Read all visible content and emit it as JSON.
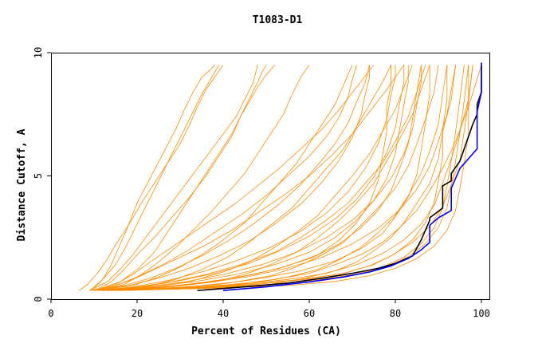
{
  "chart_data": {
    "type": "line",
    "title": "T1083-D1",
    "xlabel": "Percent of Residues (CA)",
    "ylabel": "Distance Cutoff, A",
    "xlim": [
      0,
      100
    ],
    "ylim": [
      0,
      10
    ],
    "xticks": [
      "0",
      "20",
      "40",
      "60",
      "80",
      "100"
    ],
    "yticks": [
      "0",
      "5",
      "10"
    ],
    "grid": false,
    "legend": "none",
    "colors": {
      "background_models": "#ff8c00",
      "highlight_black": "#000000",
      "highlight_blue": "#0000ff"
    },
    "highlight_series": [
      {
        "color": "#000000",
        "x": [
          34,
          45,
          55,
          63,
          70,
          76,
          80,
          84,
          86,
          88,
          88,
          91,
          91,
          93,
          93,
          95,
          96,
          97,
          98,
          99,
          99,
          100,
          100
        ],
        "y": [
          0.35,
          0.5,
          0.65,
          0.85,
          1.05,
          1.25,
          1.45,
          1.75,
          2.4,
          3.2,
          3.3,
          3.7,
          4.6,
          4.8,
          5.1,
          5.6,
          6.1,
          6.6,
          7.1,
          7.5,
          7.9,
          8.4,
          9.5
        ]
      },
      {
        "color": "#0000ff",
        "x": [
          40,
          50,
          60,
          68,
          74,
          79,
          83,
          86,
          88,
          88,
          90,
          93,
          93,
          94,
          95,
          97,
          99,
          99,
          100,
          100
        ],
        "y": [
          0.35,
          0.5,
          0.7,
          0.9,
          1.1,
          1.35,
          1.65,
          2.0,
          2.3,
          3.0,
          3.3,
          3.6,
          4.5,
          4.9,
          5.3,
          5.7,
          6.1,
          7.6,
          8.4,
          9.6
        ]
      }
    ],
    "background_curves": [
      {
        "x": [
          6.5,
          8.5,
          11,
          13,
          15,
          18,
          21,
          24,
          27,
          30,
          32,
          34,
          36,
          38,
          40
        ],
        "y": [
          0.35,
          0.6,
          1.1,
          1.6,
          2.2,
          3,
          3.9,
          4.7,
          5.5,
          6.3,
          7,
          7.8,
          8.5,
          9,
          9.5
        ]
      },
      {
        "x": [
          9.5,
          12,
          14,
          16,
          18,
          20,
          23,
          26,
          29,
          31,
          33,
          35,
          37,
          38,
          38
        ],
        "y": [
          0.35,
          0.8,
          1.4,
          2.2,
          3,
          3.9,
          4.9,
          5.9,
          6.9,
          7.7,
          8.4,
          9,
          9.3,
          9.5,
          9.5
        ]
      },
      {
        "x": [
          10,
          14,
          17,
          20,
          24,
          28,
          32,
          36,
          39,
          42,
          44,
          46,
          48,
          49,
          50
        ],
        "y": [
          0.35,
          0.7,
          1.2,
          1.8,
          2.5,
          3.3,
          4.1,
          5,
          5.8,
          6.6,
          7.4,
          8.1,
          8.8,
          9.2,
          9.5
        ]
      },
      {
        "x": [
          11,
          17,
          21,
          25,
          29,
          33,
          37,
          41,
          45,
          48,
          51,
          54,
          56,
          58,
          60
        ],
        "y": [
          0.35,
          0.6,
          1,
          1.5,
          2.1,
          2.8,
          3.5,
          4.3,
          5.1,
          5.9,
          6.7,
          7.5,
          8.3,
          9,
          9.5
        ]
      },
      {
        "x": [
          10.5,
          19,
          25,
          30,
          35,
          40,
          45,
          49,
          53,
          57,
          60,
          63,
          66,
          68,
          70
        ],
        "y": [
          0.35,
          0.55,
          0.9,
          1.3,
          1.8,
          2.4,
          3.1,
          3.9,
          4.7,
          5.5,
          6.3,
          7.1,
          7.9,
          8.7,
          9.5
        ]
      },
      {
        "x": [
          11,
          22,
          29,
          35,
          41,
          46,
          51,
          56,
          60,
          64,
          68,
          71,
          74,
          77,
          79
        ],
        "y": [
          0.35,
          0.5,
          0.8,
          1.2,
          1.7,
          2.3,
          3,
          3.7,
          4.5,
          5.3,
          6.1,
          7,
          7.9,
          8.8,
          9.5
        ]
      },
      {
        "x": [
          12,
          25,
          33,
          40,
          46,
          52,
          57,
          62,
          66,
          70,
          74,
          77,
          80,
          82,
          84
        ],
        "y": [
          0.35,
          0.5,
          0.75,
          1.1,
          1.5,
          2.1,
          2.7,
          3.4,
          4.2,
          5,
          5.9,
          6.8,
          7.7,
          8.6,
          9.5
        ]
      },
      {
        "x": [
          13,
          28,
          38,
          45,
          51,
          57,
          62,
          67,
          71,
          75,
          78,
          81,
          84,
          86,
          88
        ],
        "y": [
          0.35,
          0.5,
          0.7,
          1,
          1.4,
          1.9,
          2.5,
          3.2,
          3.9,
          4.7,
          5.6,
          6.5,
          7.5,
          8.5,
          9.5
        ]
      },
      {
        "x": [
          14,
          32,
          43,
          51,
          57,
          63,
          68,
          72,
          76,
          80,
          83,
          85,
          87,
          89,
          90
        ],
        "y": [
          0.35,
          0.5,
          0.7,
          0.95,
          1.3,
          1.8,
          2.3,
          3,
          3.7,
          4.5,
          5.4,
          6.3,
          7.3,
          8.4,
          9.5
        ]
      },
      {
        "x": [
          15,
          35,
          47,
          55,
          62,
          67,
          72,
          76,
          80,
          83,
          86,
          88,
          90,
          91,
          92
        ],
        "y": [
          0.35,
          0.5,
          0.65,
          0.9,
          1.2,
          1.6,
          2.1,
          2.7,
          3.4,
          4.2,
          5.1,
          6,
          7.1,
          8.3,
          9.5
        ]
      },
      {
        "x": [
          16,
          38,
          51,
          59,
          66,
          71,
          75,
          79,
          82,
          85,
          88,
          90,
          91,
          93,
          94
        ],
        "y": [
          0.35,
          0.45,
          0.6,
          0.85,
          1.15,
          1.5,
          1.95,
          2.5,
          3.1,
          3.9,
          4.7,
          5.7,
          6.8,
          8.1,
          9.5
        ]
      },
      {
        "x": [
          12,
          30,
          42,
          52,
          60,
          66,
          72,
          77,
          81,
          85,
          88,
          91,
          94,
          97,
          100
        ],
        "y": [
          0.35,
          0.45,
          0.6,
          0.8,
          1.05,
          1.4,
          1.8,
          2.3,
          2.9,
          3.6,
          4.4,
          5.3,
          6.4,
          7.8,
          9.5
        ]
      },
      {
        "x": [
          10,
          15,
          19,
          23,
          28,
          33,
          38,
          43,
          48,
          53,
          58,
          63,
          67,
          71,
          75
        ],
        "y": [
          0.35,
          0.6,
          1,
          1.5,
          2.1,
          2.7,
          3.3,
          3.9,
          4.6,
          5.3,
          6.1,
          6.9,
          7.7,
          8.6,
          9.5
        ]
      },
      {
        "x": [
          10,
          16,
          20,
          24,
          27,
          30,
          33,
          36,
          39,
          42,
          44,
          46,
          48,
          50,
          52
        ],
        "y": [
          0.35,
          0.7,
          1.2,
          1.9,
          2.7,
          3.5,
          4.3,
          5.1,
          5.9,
          6.7,
          7.4,
          8,
          8.6,
          9.1,
          9.5
        ]
      },
      {
        "x": [
          9,
          14,
          19,
          24,
          30,
          36,
          42,
          48,
          54,
          60,
          65,
          70,
          74,
          78,
          82
        ],
        "y": [
          0.35,
          0.5,
          0.8,
          1.2,
          1.7,
          2.2,
          2.8,
          3.5,
          4.2,
          5,
          5.8,
          6.7,
          7.6,
          8.5,
          9.5
        ]
      },
      {
        "x": [
          11,
          20,
          28,
          36,
          44,
          52,
          58,
          64,
          69,
          73,
          77,
          80,
          83,
          85,
          87
        ],
        "y": [
          0.35,
          0.5,
          0.7,
          1,
          1.4,
          1.9,
          2.5,
          3.2,
          3.9,
          4.7,
          5.5,
          6.4,
          7.4,
          8.4,
          9.5
        ]
      },
      {
        "x": [
          12,
          24,
          34,
          44,
          53,
          61,
          67,
          72,
          76,
          79,
          81,
          83,
          84,
          85,
          86
        ],
        "y": [
          0.35,
          0.45,
          0.65,
          0.9,
          1.25,
          1.7,
          2.25,
          2.9,
          3.6,
          4.4,
          5.3,
          6.3,
          7.3,
          8.4,
          9.5
        ]
      },
      {
        "x": [
          13,
          27,
          39,
          49,
          58,
          66,
          72,
          77,
          80,
          83,
          85,
          86,
          87,
          88,
          88
        ],
        "y": [
          0.35,
          0.45,
          0.6,
          0.85,
          1.15,
          1.55,
          2.05,
          2.65,
          3.35,
          4.15,
          5.05,
          6.05,
          7.15,
          8.35,
          9.5
        ]
      },
      {
        "x": [
          11,
          21,
          30,
          38,
          46,
          53,
          60,
          66,
          71,
          75,
          78,
          80,
          81,
          82,
          82
        ],
        "y": [
          0.35,
          0.5,
          0.75,
          1.05,
          1.45,
          1.95,
          2.55,
          3.25,
          4.05,
          4.95,
          5.95,
          6.95,
          7.95,
          8.8,
          9.5
        ]
      },
      {
        "x": [
          10,
          18,
          25,
          32,
          39,
          46,
          52,
          58,
          63,
          67,
          70,
          72,
          73,
          74,
          74
        ],
        "y": [
          0.35,
          0.55,
          0.85,
          1.25,
          1.75,
          2.35,
          3.05,
          3.85,
          4.75,
          5.65,
          6.55,
          7.45,
          8.3,
          9,
          9.5
        ]
      },
      {
        "x": [
          14,
          30,
          44,
          55,
          64,
          71,
          77,
          82,
          86,
          89,
          91,
          93,
          95,
          97,
          98
        ],
        "y": [
          0.35,
          0.45,
          0.6,
          0.8,
          1.05,
          1.4,
          1.85,
          2.4,
          3.05,
          3.8,
          4.7,
          5.7,
          6.8,
          8.1,
          9.5
        ]
      },
      {
        "x": [
          15,
          33,
          48,
          59,
          68,
          74,
          79,
          84,
          88,
          91,
          93,
          95,
          96,
          97,
          97
        ],
        "y": [
          0.35,
          0.45,
          0.6,
          0.8,
          1.05,
          1.35,
          1.75,
          2.3,
          2.95,
          3.75,
          4.65,
          5.65,
          6.8,
          8.1,
          9.5
        ]
      },
      {
        "x": [
          16,
          36,
          52,
          63,
          71,
          77,
          82,
          86,
          89,
          91,
          92,
          93,
          94,
          95,
          96
        ],
        "y": [
          0.35,
          0.45,
          0.55,
          0.75,
          1,
          1.3,
          1.7,
          2.25,
          2.9,
          3.7,
          4.6,
          5.6,
          6.8,
          8.1,
          9.5
        ]
      },
      {
        "x": [
          12,
          26,
          37,
          47,
          55,
          62,
          67,
          71,
          74,
          76,
          77,
          78,
          78,
          79,
          79
        ],
        "y": [
          0.35,
          0.5,
          0.7,
          1,
          1.35,
          1.8,
          2.4,
          3.1,
          3.9,
          4.8,
          5.8,
          6.8,
          7.8,
          8.7,
          9.5
        ]
      },
      {
        "x": [
          9,
          12,
          15,
          17,
          19,
          21,
          23,
          25,
          27,
          29,
          31,
          33,
          35,
          37,
          39
        ],
        "y": [
          0.35,
          0.8,
          1.4,
          2,
          2.7,
          3.4,
          4.1,
          4.8,
          5.5,
          6.2,
          6.9,
          7.6,
          8.3,
          8.9,
          9.5
        ]
      },
      {
        "x": [
          10,
          15,
          20,
          26,
          32,
          38,
          44,
          50,
          55,
          60,
          64,
          67,
          69,
          70,
          71
        ],
        "y": [
          0.35,
          0.55,
          0.9,
          1.4,
          2,
          2.7,
          3.4,
          4.2,
          5,
          5.8,
          6.6,
          7.4,
          8.2,
          8.9,
          9.5
        ]
      },
      {
        "x": [
          13,
          22,
          31,
          40,
          49,
          57,
          64,
          70,
          75,
          79,
          82,
          84,
          85,
          86,
          86
        ],
        "y": [
          0.35,
          0.5,
          0.7,
          1,
          1.4,
          1.9,
          2.5,
          3.2,
          4,
          4.9,
          5.9,
          6.9,
          7.9,
          8.8,
          9.5
        ]
      },
      {
        "x": [
          11,
          19,
          27,
          35,
          43,
          51,
          58,
          64,
          69,
          73,
          76,
          78,
          79,
          80,
          80
        ],
        "y": [
          0.35,
          0.5,
          0.75,
          1.1,
          1.55,
          2.1,
          2.75,
          3.5,
          4.35,
          5.3,
          6.3,
          7.3,
          8.3,
          9,
          9.5
        ]
      },
      {
        "x": [
          12,
          23,
          33,
          43,
          52,
          60,
          66,
          71,
          75,
          78,
          80,
          81,
          82,
          83,
          83
        ],
        "y": [
          0.35,
          0.5,
          0.7,
          1,
          1.4,
          1.9,
          2.5,
          3.2,
          4,
          4.9,
          5.9,
          6.9,
          7.9,
          8.8,
          9.5
        ]
      },
      {
        "x": [
          15,
          35,
          50,
          62,
          71,
          78,
          83,
          87,
          90,
          92,
          93,
          94,
          95,
          96,
          97
        ],
        "y": [
          0.35,
          0.45,
          0.58,
          0.78,
          1.02,
          1.32,
          1.72,
          2.25,
          2.9,
          3.7,
          4.6,
          5.6,
          6.75,
          8.05,
          9.5
        ]
      },
      {
        "x": [
          14,
          31,
          46,
          58,
          68,
          75,
          80,
          84,
          87,
          89,
          90,
          91,
          91,
          92,
          92
        ],
        "y": [
          0.35,
          0.45,
          0.6,
          0.8,
          1.05,
          1.4,
          1.85,
          2.4,
          3.1,
          3.9,
          4.8,
          5.8,
          6.9,
          8.1,
          9.5
        ]
      },
      {
        "x": [
          10,
          17,
          23,
          29,
          35,
          41,
          47,
          53,
          58,
          62,
          66,
          69,
          71,
          73,
          74
        ],
        "y": [
          0.35,
          0.55,
          0.85,
          1.25,
          1.75,
          2.35,
          3.05,
          3.85,
          4.65,
          5.45,
          6.3,
          7.15,
          8,
          8.8,
          9.5
        ]
      },
      {
        "x": [
          16,
          39,
          55,
          66,
          74,
          80,
          85,
          89,
          92,
          94,
          95,
          96,
          97,
          97,
          98
        ],
        "y": [
          0.35,
          0.45,
          0.55,
          0.72,
          0.95,
          1.25,
          1.65,
          2.15,
          2.8,
          3.6,
          4.5,
          5.5,
          6.7,
          8,
          9.5
        ]
      },
      {
        "x": [
          9,
          13,
          16,
          19,
          22,
          25,
          28,
          31,
          34,
          37,
          40,
          43,
          45,
          47,
          48
        ],
        "y": [
          0.35,
          0.7,
          1.2,
          1.8,
          2.5,
          3.2,
          3.9,
          4.6,
          5.3,
          6,
          6.7,
          7.4,
          8.1,
          8.8,
          9.5
        ]
      },
      {
        "x": [
          13,
          25,
          36,
          46,
          55,
          63,
          70,
          76,
          81,
          85,
          88,
          90,
          92,
          93,
          94
        ],
        "y": [
          0.35,
          0.48,
          0.66,
          0.92,
          1.26,
          1.7,
          2.24,
          2.88,
          3.62,
          4.46,
          5.4,
          6.4,
          7.5,
          8.5,
          9.5
        ]
      }
    ]
  }
}
